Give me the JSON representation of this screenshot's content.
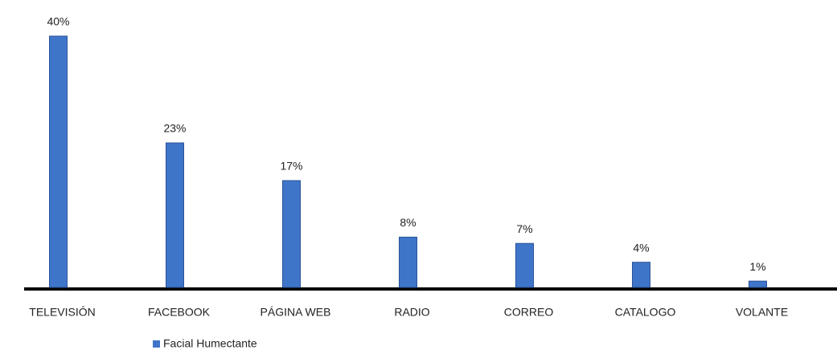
{
  "chart_data": {
    "type": "bar",
    "categories": [
      "TELEVISIÓN",
      "FACEBOOK",
      "PÁGINA WEB",
      "RADIO",
      "CORREO",
      "CATALOGO",
      "VOLANTE"
    ],
    "series": [
      {
        "name": "Facial Humectante",
        "color": "#3f75c9",
        "values": [
          40,
          23,
          17,
          8,
          7,
          4,
          1
        ],
        "value_labels": [
          "40%",
          "23%",
          "17%",
          "8%",
          "7%",
          "4%",
          "1%"
        ]
      }
    ],
    "legend": "bottom-left"
  }
}
